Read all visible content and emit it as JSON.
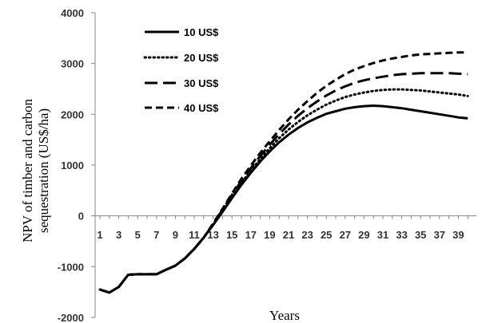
{
  "chart_data": {
    "type": "line",
    "xlabel": "Years",
    "ylabel": [
      "NPV of timber and carbon",
      "sequestration (US$/ha)"
    ],
    "ylim": [
      -2000,
      4000
    ],
    "yticks": [
      -2000,
      -1000,
      0,
      1000,
      2000,
      3000,
      4000
    ],
    "xlim": [
      1,
      40
    ],
    "xticks": [
      1,
      3,
      5,
      7,
      9,
      11,
      13,
      15,
      17,
      19,
      21,
      23,
      25,
      27,
      29,
      31,
      33,
      35,
      37,
      39
    ],
    "grid": false,
    "legend_position": "top-left",
    "x": [
      1,
      2,
      3,
      4,
      5,
      6,
      7,
      8,
      9,
      10,
      11,
      12,
      13,
      14,
      15,
      16,
      17,
      18,
      19,
      20,
      21,
      22,
      23,
      24,
      25,
      26,
      27,
      28,
      29,
      30,
      31,
      32,
      33,
      34,
      35,
      36,
      37,
      38,
      39,
      40
    ],
    "series": [
      {
        "name": "10 US$",
        "dash": "solid",
        "values": [
          -1450,
          -1510,
          -1400,
          -1160,
          -1150,
          -1150,
          -1150,
          -1060,
          -980,
          -840,
          -650,
          -430,
          -180,
          80,
          350,
          610,
          850,
          1070,
          1270,
          1450,
          1600,
          1730,
          1840,
          1930,
          2010,
          2060,
          2110,
          2140,
          2160,
          2170,
          2160,
          2140,
          2120,
          2090,
          2060,
          2030,
          2000,
          1970,
          1940,
          1920
        ]
      },
      {
        "name": "20 US$",
        "dash": "dotted",
        "values": [
          -1450,
          -1510,
          -1400,
          -1160,
          -1150,
          -1150,
          -1150,
          -1060,
          -980,
          -840,
          -650,
          -430,
          -170,
          100,
          380,
          650,
          890,
          1120,
          1330,
          1530,
          1700,
          1850,
          1980,
          2090,
          2190,
          2270,
          2340,
          2390,
          2430,
          2460,
          2480,
          2490,
          2490,
          2480,
          2470,
          2450,
          2430,
          2410,
          2390,
          2360
        ]
      },
      {
        "name": "30 US$",
        "dash": "long-dash",
        "values": [
          -1450,
          -1510,
          -1400,
          -1160,
          -1150,
          -1150,
          -1150,
          -1060,
          -980,
          -840,
          -650,
          -430,
          -160,
          120,
          410,
          690,
          940,
          1180,
          1400,
          1610,
          1800,
          1970,
          2120,
          2250,
          2370,
          2470,
          2550,
          2620,
          2670,
          2710,
          2740,
          2770,
          2790,
          2800,
          2810,
          2810,
          2810,
          2810,
          2800,
          2790
        ]
      },
      {
        "name": "40 US$",
        "dash": "dashed",
        "values": [
          -1450,
          -1510,
          -1400,
          -1160,
          -1150,
          -1150,
          -1150,
          -1060,
          -980,
          -840,
          -650,
          -430,
          -150,
          140,
          440,
          730,
          990,
          1240,
          1470,
          1690,
          1900,
          2090,
          2260,
          2420,
          2560,
          2680,
          2790,
          2880,
          2950,
          3010,
          3060,
          3100,
          3130,
          3160,
          3180,
          3190,
          3200,
          3210,
          3220,
          3220
        ]
      }
    ]
  }
}
